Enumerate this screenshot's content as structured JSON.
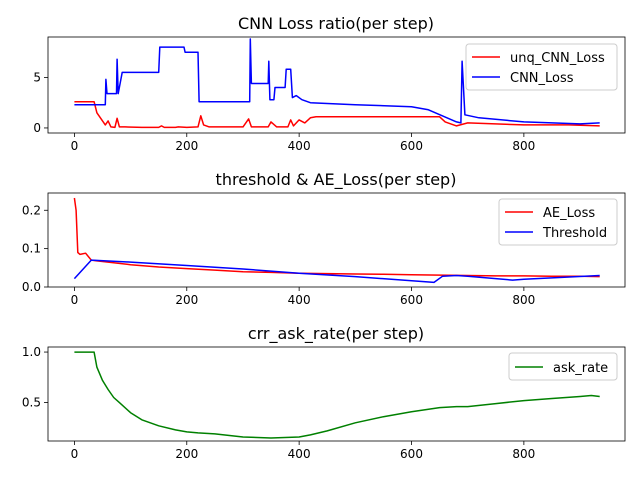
{
  "chart_data": [
    {
      "type": "line",
      "title": "CNN Loss ratio(per step)",
      "xlim": [
        -47,
        980
      ],
      "ylim": [
        -0.5,
        9.0
      ],
      "xticks": [
        0,
        200,
        400,
        600,
        800
      ],
      "yticks": [
        0,
        5
      ],
      "grid": false,
      "legend_position": "top-right",
      "series": [
        {
          "name": "unq_CNN_Loss",
          "color": "#ff0000",
          "x": [
            0,
            35,
            40,
            55,
            60,
            65,
            72,
            76,
            80,
            90,
            120,
            150,
            155,
            160,
            180,
            185,
            200,
            220,
            225,
            230,
            240,
            300,
            310,
            315,
            330,
            345,
            350,
            360,
            380,
            385,
            390,
            400,
            410,
            420,
            430,
            600,
            650,
            660,
            680,
            700,
            800,
            880,
            935
          ],
          "y": [
            2.6,
            2.6,
            1.5,
            0.3,
            0.7,
            0.1,
            0.05,
            0.95,
            0.1,
            0.1,
            0.05,
            0.05,
            0.2,
            0.05,
            0.05,
            0.1,
            0.05,
            0.1,
            1.2,
            0.3,
            0.1,
            0.1,
            0.9,
            0.1,
            0.1,
            0.1,
            0.6,
            0.1,
            0.1,
            0.8,
            0.2,
            0.8,
            0.5,
            1.0,
            1.1,
            1.1,
            1.1,
            0.6,
            0.2,
            0.5,
            0.3,
            0.3,
            0.2
          ]
        },
        {
          "name": "CNN_Loss",
          "color": "#0000ff",
          "x": [
            0,
            35,
            55,
            56,
            58,
            60,
            75,
            76,
            78,
            85,
            150,
            152,
            195,
            197,
            220,
            222,
            312,
            313,
            315,
            345,
            346,
            348,
            355,
            357,
            365,
            375,
            377,
            385,
            388,
            395,
            405,
            420,
            500,
            600,
            630,
            680,
            688,
            690,
            695,
            720,
            800,
            900,
            935
          ],
          "y": [
            2.3,
            2.3,
            2.3,
            4.8,
            3.4,
            3.4,
            3.4,
            6.8,
            3.4,
            5.5,
            5.5,
            8.0,
            8.0,
            7.5,
            7.5,
            2.6,
            2.6,
            8.8,
            4.4,
            4.4,
            6.6,
            2.8,
            2.8,
            4.0,
            4.0,
            4.0,
            5.8,
            5.8,
            3.0,
            3.2,
            2.8,
            2.5,
            2.3,
            2.1,
            1.8,
            0.6,
            0.5,
            6.6,
            1.3,
            1.0,
            0.6,
            0.4,
            0.5
          ]
        }
      ]
    },
    {
      "type": "line",
      "title": "threshold & AE_Loss(per step)",
      "xlim": [
        -47,
        980
      ],
      "ylim": [
        0,
        0.245
      ],
      "xticks": [
        0,
        200,
        400,
        600,
        800
      ],
      "yticks": [
        0.0,
        0.1,
        0.2
      ],
      "grid": false,
      "legend_position": "top-right",
      "series": [
        {
          "name": "AE_Loss",
          "color": "#ff0000",
          "x": [
            0,
            3,
            6,
            10,
            20,
            30,
            40,
            60,
            100,
            150,
            200,
            250,
            300,
            350,
            400,
            450,
            500,
            550,
            600,
            650,
            700,
            750,
            800,
            850,
            900,
            935
          ],
          "y": [
            0.232,
            0.2,
            0.09,
            0.085,
            0.088,
            0.07,
            0.068,
            0.065,
            0.058,
            0.052,
            0.048,
            0.044,
            0.04,
            0.038,
            0.036,
            0.035,
            0.034,
            0.033,
            0.032,
            0.031,
            0.03,
            0.029,
            0.029,
            0.028,
            0.028,
            0.027
          ]
        },
        {
          "name": "Threshold",
          "color": "#0000ff",
          "x": [
            0,
            30,
            100,
            200,
            300,
            400,
            500,
            640,
            655,
            680,
            700,
            780,
            800,
            935
          ],
          "y": [
            0.022,
            0.07,
            0.065,
            0.056,
            0.047,
            0.036,
            0.027,
            0.012,
            0.028,
            0.03,
            0.028,
            0.018,
            0.02,
            0.03
          ]
        }
      ]
    },
    {
      "type": "line",
      "title": "crr_ask_rate(per step)",
      "xlim": [
        -47,
        980
      ],
      "ylim": [
        0.12,
        1.05
      ],
      "xticks": [
        0,
        200,
        400,
        600,
        800
      ],
      "yticks": [
        0.5,
        1.0
      ],
      "grid": false,
      "legend_position": "top-right",
      "series": [
        {
          "name": "ask_rate",
          "color": "#008000",
          "x": [
            0,
            35,
            40,
            50,
            60,
            70,
            80,
            100,
            120,
            150,
            180,
            200,
            220,
            250,
            300,
            350,
            400,
            420,
            450,
            500,
            550,
            600,
            650,
            680,
            700,
            750,
            800,
            850,
            900,
            920,
            935
          ],
          "y": [
            1.0,
            1.0,
            0.85,
            0.72,
            0.63,
            0.55,
            0.5,
            0.4,
            0.33,
            0.27,
            0.23,
            0.21,
            0.2,
            0.19,
            0.16,
            0.15,
            0.16,
            0.18,
            0.22,
            0.3,
            0.36,
            0.41,
            0.45,
            0.46,
            0.46,
            0.49,
            0.52,
            0.54,
            0.56,
            0.57,
            0.56
          ]
        }
      ]
    }
  ]
}
